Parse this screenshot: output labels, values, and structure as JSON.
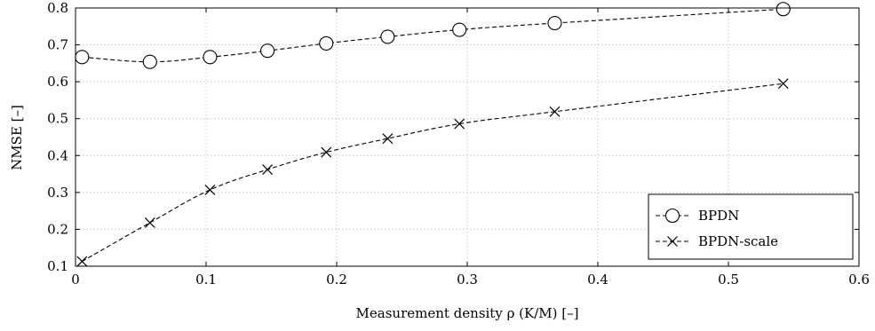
{
  "chart_data": {
    "type": "line",
    "title": "",
    "xlabel": "Measurement density ρ (K/M) [–]",
    "ylabel": "NMSE [–]",
    "xlim": [
      0,
      0.6
    ],
    "ylim": [
      0.1,
      0.8
    ],
    "x_ticks": [
      "0",
      "0.1",
      "0.2",
      "0.3",
      "0.4",
      "0.5",
      "0.6"
    ],
    "y_ticks": [
      "0.1",
      "0.2",
      "0.3",
      "0.4",
      "0.5",
      "0.6",
      "0.7",
      "0.8"
    ],
    "grid": true,
    "legend_position": "bottom-right",
    "series": [
      {
        "name": "BPDN",
        "marker": "circle",
        "line_style": "dashed",
        "color": "#000000",
        "x": [
          0.005,
          0.057,
          0.103,
          0.147,
          0.192,
          0.239,
          0.294,
          0.367,
          0.542
        ],
        "y": [
          0.667,
          0.654,
          0.667,
          0.684,
          0.704,
          0.722,
          0.741,
          0.759,
          0.797
        ]
      },
      {
        "name": "BPDN-scale",
        "marker": "x",
        "line_style": "dashed",
        "color": "#000000",
        "x": [
          0.005,
          0.057,
          0.103,
          0.147,
          0.192,
          0.239,
          0.294,
          0.367,
          0.542
        ],
        "y": [
          0.113,
          0.218,
          0.307,
          0.362,
          0.409,
          0.446,
          0.486,
          0.519,
          0.595
        ]
      }
    ]
  }
}
